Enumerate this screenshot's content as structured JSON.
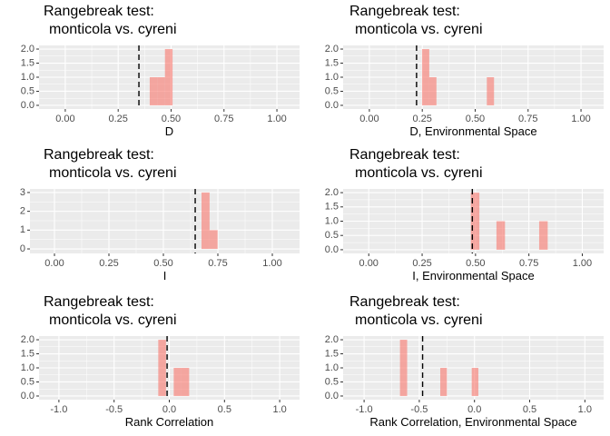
{
  "chart_data": [
    {
      "type": "histogram",
      "title": [
        "Rangebreak test:",
        "monticola vs. cyreni"
      ],
      "xlabel": "D",
      "bins": [
        0.399,
        0.435,
        0.471,
        0.507
      ],
      "counts": [
        1,
        1,
        2
      ],
      "vline": 0.348,
      "color": "#f8766d",
      "xlim": [
        -0.124,
        1.107
      ],
      "ylim": [
        -0.13,
        2.13
      ],
      "xticks": [
        {
          "value": 0,
          "label": "0.00"
        },
        {
          "value": 0.25,
          "label": "0.25"
        },
        {
          "value": 0.5,
          "label": "0.50"
        },
        {
          "value": 0.75,
          "label": "0.75"
        },
        {
          "value": 1,
          "label": "1.00"
        }
      ],
      "yticks": [
        {
          "value": 0,
          "label": "0.0"
        },
        0.5,
        {
          "value": 1,
          "label": "1.0"
        },
        1.5,
        {
          "value": 2,
          "label": "2.0"
        }
      ]
    },
    {
      "type": "histogram",
      "title": [
        "Rangebreak test:",
        "monticola vs. cyreni"
      ],
      "xlabel": "D, Environmental Space",
      "bins": [
        0.249,
        0.283,
        0.317,
        0.351,
        0.385,
        0.419,
        0.453,
        0.487,
        0.521,
        0.555,
        0.589
      ],
      "counts": [
        2,
        1,
        0,
        0,
        0,
        0,
        0,
        0,
        0,
        1
      ],
      "vline": 0.223,
      "color": "#f8766d",
      "xlim": [
        -0.124,
        1.107
      ],
      "ylim": [
        -0.13,
        2.13
      ],
      "xticks": [
        {
          "value": 0,
          "label": "0.00"
        },
        {
          "value": 0.25,
          "label": "0.25"
        },
        {
          "value": 0.5,
          "label": "0.50"
        },
        {
          "value": 0.75,
          "label": "0.75"
        },
        {
          "value": 1,
          "label": "1.00"
        }
      ],
      "yticks": [
        {
          "value": 0,
          "label": "0.0"
        },
        0.5,
        {
          "value": 1,
          "label": "1.0"
        },
        1.5,
        {
          "value": 2,
          "label": "2.0"
        }
      ]
    },
    {
      "type": "histogram",
      "title": [
        "Rangebreak test:",
        "monticola vs. cyreni"
      ],
      "xlabel": "I",
      "bins": [
        0.675,
        0.712,
        0.749
      ],
      "counts": [
        3,
        1
      ],
      "vline": 0.646,
      "color": "#f8766d",
      "xlim": [
        -0.1125,
        1.125
      ],
      "ylim": [
        -0.24,
        3.19
      ],
      "xticks": [
        {
          "value": 0,
          "label": "0.00"
        },
        {
          "value": 0.25,
          "label": "0.25"
        },
        {
          "value": 0.5,
          "label": "0.50"
        },
        {
          "value": 0.75,
          "label": "0.75"
        },
        {
          "value": 1,
          "label": "1.00"
        }
      ],
      "yticks": [
        0,
        1,
        2,
        3
      ]
    },
    {
      "type": "histogram",
      "title": [
        "Rangebreak test:",
        "monticola vs. cyreni"
      ],
      "xlabel": "I, Environmental Space",
      "bins": [
        0.478,
        0.518,
        0.558,
        0.598,
        0.638,
        0.678,
        0.718,
        0.758,
        0.798,
        0.838
      ],
      "counts": [
        2,
        0,
        0,
        1,
        0,
        0,
        0,
        0,
        1
      ],
      "vline": 0.485,
      "color": "#f8766d",
      "xlim": [
        -0.12,
        1.1
      ],
      "ylim": [
        -0.13,
        2.13
      ],
      "xticks": [
        {
          "value": 0,
          "label": "0.00"
        },
        {
          "value": 0.25,
          "label": "0.25"
        },
        {
          "value": 0.5,
          "label": "0.50"
        },
        {
          "value": 0.75,
          "label": "0.75"
        },
        {
          "value": 1,
          "label": "1.00"
        }
      ],
      "yticks": [
        {
          "value": 0,
          "label": "0.0"
        },
        0.5,
        {
          "value": 1,
          "label": "1.0"
        },
        1.5,
        {
          "value": 2,
          "label": "2.0"
        }
      ]
    },
    {
      "type": "histogram",
      "title": [
        "Rangebreak test:",
        "monticola vs. cyreni"
      ],
      "xlabel": "Rank Correlation",
      "bins": [
        -0.1,
        -0.03,
        0.04,
        0.11,
        0.18
      ],
      "counts": [
        2,
        0,
        1,
        1
      ],
      "vline": -0.02,
      "color": "#f8766d",
      "xlim": [
        -1.18,
        1.18
      ],
      "ylim": [
        -0.13,
        2.13
      ],
      "xticks": [
        {
          "value": -1,
          "label": "-1.0"
        },
        -0.5,
        {
          "value": 0,
          "label": "0.0"
        },
        0.5,
        {
          "value": 1,
          "label": "1.0"
        }
      ],
      "yticks": [
        {
          "value": 0,
          "label": "0.0"
        },
        0.5,
        {
          "value": 1,
          "label": "1.0"
        },
        1.5,
        {
          "value": 2,
          "label": "2.0"
        }
      ]
    },
    {
      "type": "histogram",
      "title": [
        "Rangebreak test:",
        "monticola vs. cyreni"
      ],
      "xlabel": "Rank Correlation, Environmental Space",
      "bins": [
        -0.675,
        -0.61,
        -0.31,
        -0.25,
        -0.025,
        0.035
      ],
      "counts": [
        2,
        0,
        1,
        0,
        1
      ],
      "vline": -0.47,
      "color": "#f8766d",
      "xlim": [
        -1.19,
        1.17
      ],
      "ylim": [
        -0.13,
        2.13
      ],
      "xticks": [
        {
          "value": -1,
          "label": "-1.0"
        },
        -0.5,
        {
          "value": 0,
          "label": "0.0"
        },
        0.5,
        {
          "value": 1,
          "label": "1.0"
        }
      ],
      "yticks": [
        {
          "value": 0,
          "label": "0.0"
        },
        0.5,
        {
          "value": 1,
          "label": "1.0"
        },
        1.5,
        {
          "value": 2,
          "label": "2.0"
        }
      ]
    }
  ]
}
